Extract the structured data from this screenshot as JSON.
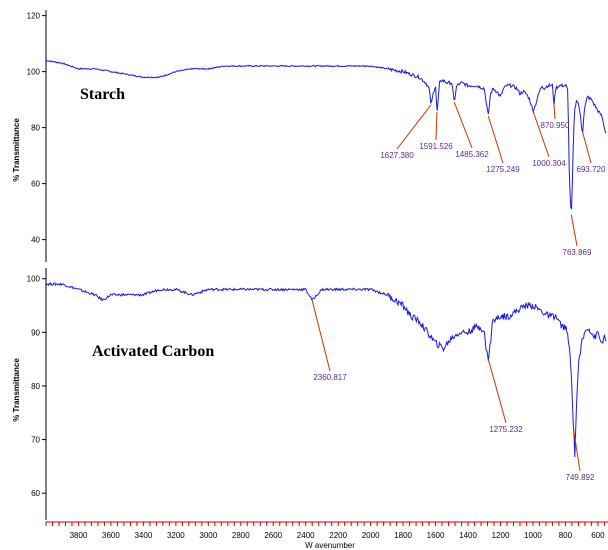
{
  "chart_data": [
    {
      "type": "line",
      "title": "Starch",
      "xlabel": "",
      "ylabel": "% Transmittance",
      "xlim": [
        4000,
        550
      ],
      "ylim": [
        32,
        122
      ],
      "yticks": [
        40,
        60,
        80,
        100,
        120
      ],
      "series_color": "#1a1adc",
      "series": [
        {
          "x": [
            4000,
            3900,
            3800,
            3700,
            3600,
            3500,
            3400,
            3300,
            3200,
            3100,
            3000,
            2900,
            2800,
            2700,
            2600,
            2500,
            2400,
            2300,
            2200,
            2100,
            2000,
            1900,
            1800,
            1750,
            1700,
            1660,
            1640,
            1627,
            1612,
            1600,
            1591,
            1575,
            1560,
            1530,
            1500,
            1485,
            1470,
            1440,
            1400,
            1350,
            1300,
            1290,
            1275,
            1262,
            1245,
            1225,
            1200,
            1180,
            1160,
            1130,
            1100,
            1080,
            1060,
            1040,
            1020,
            1000,
            985,
            965,
            945,
            930,
            910,
            880,
            870,
            860,
            840,
            810,
            795,
            785,
            775,
            763,
            752,
            745,
            735,
            725,
            712,
            700,
            694,
            685,
            665,
            640,
            620,
            600,
            575,
            560,
            550
          ],
          "y": [
            104,
            103,
            101,
            101,
            100,
            99,
            98,
            98,
            100,
            101,
            101,
            102,
            102,
            102,
            102,
            102,
            102,
            102,
            102,
            102,
            102,
            101,
            100,
            99,
            98,
            96,
            94,
            88,
            93,
            95,
            85,
            96,
            97,
            96,
            96,
            89,
            95,
            96,
            95,
            95,
            94,
            90,
            84,
            92,
            94,
            93,
            91,
            94,
            95,
            95,
            94,
            92,
            93,
            92,
            90,
            86,
            88,
            92,
            95,
            94,
            95,
            95,
            88,
            94,
            95,
            95,
            95,
            93,
            60,
            48,
            72,
            85,
            89,
            90,
            86,
            80,
            78,
            86,
            91,
            90,
            88,
            86,
            84,
            80,
            78
          ]
        }
      ],
      "annotations": [
        {
          "text": "1627.380",
          "x": 1627.38
        },
        {
          "text": "1591.526",
          "x": 1591.526
        },
        {
          "text": "1485.362",
          "x": 1485.362
        },
        {
          "text": "1275.249",
          "x": 1275.249
        },
        {
          "text": "1000.304",
          "x": 1000.304
        },
        {
          "text": "870.950",
          "x": 870.95
        },
        {
          "text": "693.720",
          "x": 693.72
        },
        {
          "text": "763.869",
          "x": 763.869
        }
      ]
    },
    {
      "type": "line",
      "title": "Activated Carbon",
      "xlabel": "W avenumber",
      "ylabel": "% Transmittance",
      "xlim": [
        4000,
        550
      ],
      "ylim": [
        55,
        102
      ],
      "yticks": [
        60,
        70,
        80,
        90,
        100
      ],
      "xticks": [
        3800,
        3600,
        3400,
        3200,
        3000,
        2800,
        2600,
        2400,
        2200,
        2000,
        1800,
        1600,
        1400,
        1200,
        1000,
        800,
        600
      ],
      "series_color": "#1a1adc",
      "series": [
        {
          "x": [
            4000,
            3900,
            3800,
            3700,
            3650,
            3600,
            3500,
            3400,
            3300,
            3200,
            3100,
            3000,
            2900,
            2800,
            2700,
            2600,
            2500,
            2400,
            2360,
            2330,
            2300,
            2200,
            2100,
            2000,
            1900,
            1850,
            1800,
            1750,
            1700,
            1650,
            1600,
            1550,
            1500,
            1450,
            1400,
            1350,
            1320,
            1300,
            1290,
            1275,
            1262,
            1250,
            1200,
            1150,
            1100,
            1050,
            1000,
            950,
            900,
            860,
            840,
            820,
            800,
            790,
            780,
            770,
            760,
            750,
            742,
            735,
            720,
            700,
            680,
            660,
            640,
            620,
            600,
            580,
            560,
            550
          ],
          "y": [
            99,
            99,
            98,
            97,
            96,
            97,
            97,
            97,
            98,
            98,
            97,
            98,
            98,
            98,
            98,
            98,
            98,
            98,
            96,
            97,
            98,
            98,
            98,
            98,
            97,
            96,
            95,
            93,
            92,
            90,
            88,
            87,
            89,
            90,
            90,
            91,
            91,
            90,
            87,
            85,
            88,
            92,
            93,
            93,
            94,
            95,
            95,
            94,
            93,
            93,
            92,
            91,
            91,
            90,
            88,
            85,
            80,
            72,
            67,
            74,
            84,
            88,
            90,
            91,
            90,
            89,
            90,
            88,
            89,
            88
          ]
        }
      ],
      "annotations": [
        {
          "text": "2360.817",
          "x": 2360.817
        },
        {
          "text": "1275.232",
          "x": 1275.232
        },
        {
          "text": "749.892",
          "x": 749.892
        }
      ]
    }
  ]
}
